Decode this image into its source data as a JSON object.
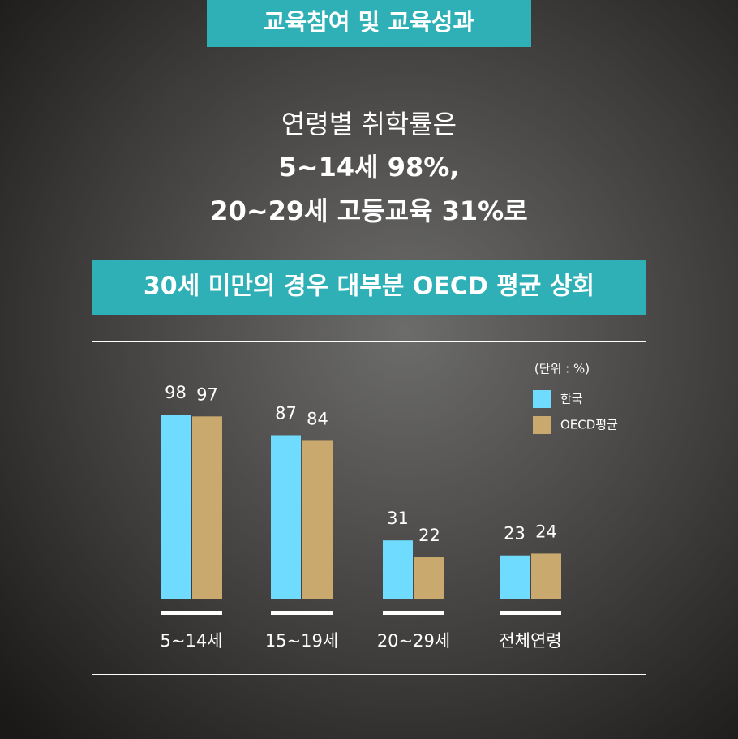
{
  "header": {
    "title": "교육참여 및 교육성과"
  },
  "headline": {
    "lines": [
      "연령별 취학률은",
      "5~14세 98%,",
      "20~29세 고등교육 31%로"
    ]
  },
  "banner": "30세 미만의 경우 대부분 OECD 평균 상회",
  "chart_data": {
    "type": "bar",
    "unit_label": "(단위 : %)",
    "categories": [
      "5~14세",
      "15~19세",
      "20~29세",
      "전체연령"
    ],
    "series": [
      {
        "name": "한국",
        "color": "#6fdcff",
        "values": [
          98,
          87,
          31,
          23
        ]
      },
      {
        "name": "OECD평균",
        "color": "#c9a96e",
        "values": [
          97,
          84,
          22,
          24
        ]
      }
    ]
  }
}
